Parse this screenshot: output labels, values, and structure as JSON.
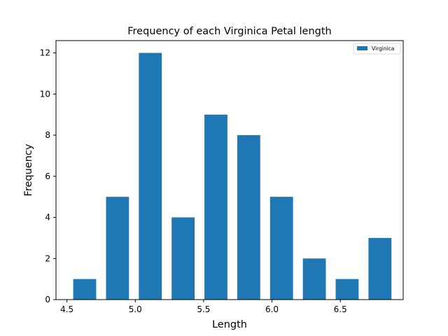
{
  "chart_data": {
    "type": "bar",
    "title": "Frequency of each Virginica Petal length",
    "xlabel": "Length",
    "ylabel": "Frequency",
    "xlim": [
      4.42,
      6.96
    ],
    "ylim": [
      0,
      12.6
    ],
    "xticks": [
      "4.5",
      "5.0",
      "5.5",
      "6.0",
      "6.5"
    ],
    "yticks": [
      "0",
      "2",
      "4",
      "6",
      "8",
      "10",
      "12"
    ],
    "bin_width": 0.24,
    "grid": false,
    "legend": {
      "position": "top-right",
      "entries": [
        "Virginica"
      ]
    },
    "series": [
      {
        "name": "Virginica",
        "color": "#1f77b4",
        "x": [
          4.63,
          4.87,
          5.11,
          5.35,
          5.59,
          5.83,
          6.07,
          6.31,
          6.55,
          6.79
        ],
        "values": [
          1,
          5,
          12,
          4,
          9,
          8,
          5,
          2,
          1,
          3
        ]
      }
    ]
  }
}
